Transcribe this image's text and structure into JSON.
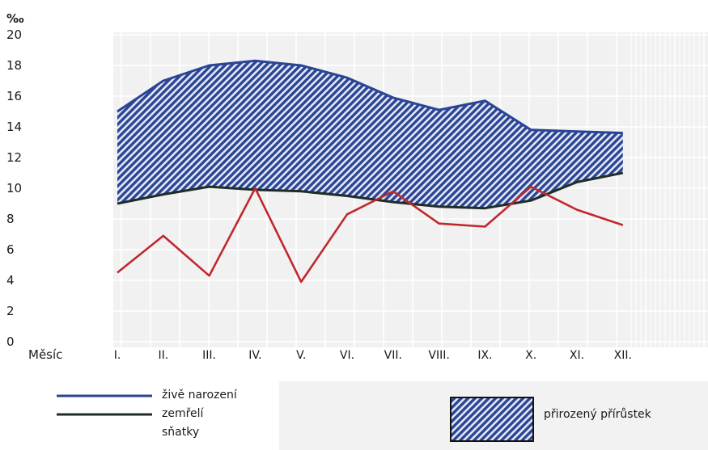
{
  "chart_data": {
    "type": "line",
    "ylabel": "‰",
    "xlabel": "Měsíc",
    "ylim": [
      0,
      20
    ],
    "yticks": [
      0,
      2,
      4,
      6,
      8,
      10,
      12,
      14,
      16,
      18,
      20
    ],
    "categories": [
      "I.",
      "II.",
      "III.",
      "IV.",
      "V.",
      "VI.",
      "VII.",
      "VIII.",
      "IX.",
      "X.",
      "XI.",
      "XII."
    ],
    "series": [
      {
        "name": "živě narození",
        "color": "#2b4596",
        "values": [
          15.0,
          17.0,
          18.0,
          18.3,
          18.0,
          17.2,
          15.9,
          15.1,
          15.7,
          13.8,
          13.7,
          13.6
        ]
      },
      {
        "name": "zemřelí",
        "color": "#1f2d25",
        "values": [
          9.0,
          9.6,
          10.1,
          9.9,
          9.8,
          9.5,
          9.1,
          8.8,
          8.7,
          9.2,
          10.4,
          11.0
        ]
      },
      {
        "name": "sňatky",
        "color": "#c0282d",
        "values": [
          4.5,
          6.9,
          4.3,
          10.0,
          3.9,
          8.3,
          9.8,
          7.7,
          7.5,
          10.1,
          8.6,
          7.6
        ]
      }
    ],
    "fill_label": "přirozený přírůstek",
    "fill_color": "#2b4596",
    "grid": true,
    "legend_position": "bottom"
  }
}
